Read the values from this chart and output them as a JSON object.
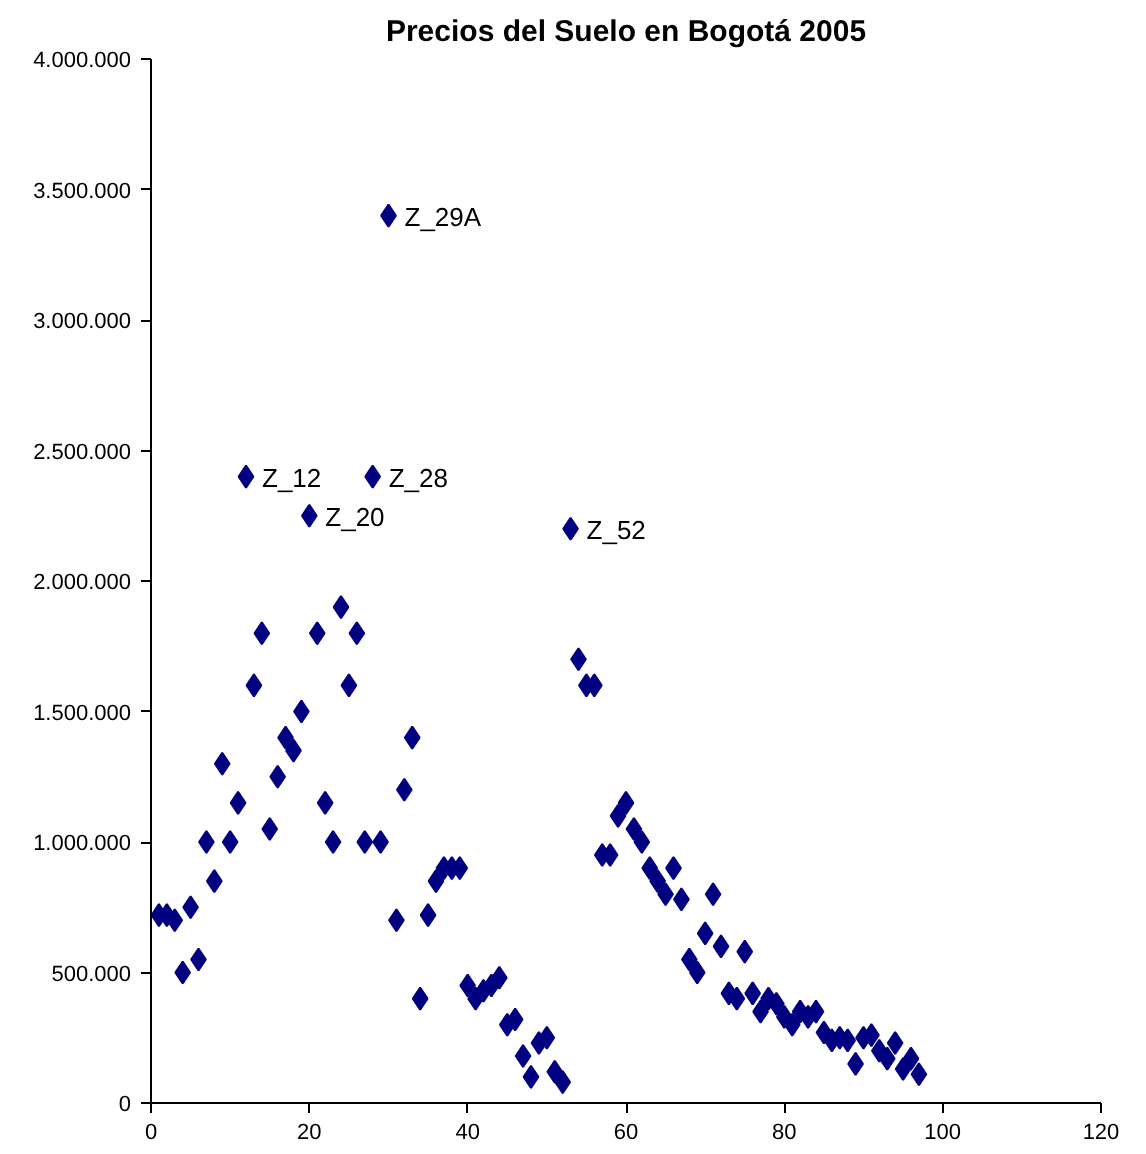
{
  "chart_data": {
    "type": "scatter",
    "title": "Precios del Suelo en Bogotá 2005",
    "marker": "diamond",
    "grid": false,
    "xlim": [
      0,
      120
    ],
    "xticks": [
      0,
      20,
      40,
      60,
      80,
      100,
      120
    ],
    "ylim": [
      0,
      4000000
    ],
    "yticks": [
      {
        "value": 0,
        "label": "0"
      },
      {
        "value": 500000,
        "label": "500.000"
      },
      {
        "value": 1000000,
        "label": "1.000.000"
      },
      {
        "value": 1500000,
        "label": "1.500.000"
      },
      {
        "value": 2000000,
        "label": "2.000.000"
      },
      {
        "value": 2500000,
        "label": "2.500.000"
      },
      {
        "value": 3000000,
        "label": "3.000.000"
      },
      {
        "value": 3500000,
        "label": "3.500.000"
      },
      {
        "value": 4000000,
        "label": "4.000.000"
      }
    ],
    "x": [
      1,
      2,
      3,
      4,
      5,
      6,
      7,
      8,
      9,
      10,
      11,
      12,
      13,
      14,
      15,
      16,
      17,
      18,
      19,
      20,
      21,
      22,
      23,
      24,
      25,
      26,
      27,
      28,
      29,
      30,
      31,
      32,
      33,
      34,
      35,
      36,
      37,
      38,
      39,
      40,
      41,
      42,
      43,
      44,
      45,
      46,
      47,
      48,
      49,
      50,
      51,
      52,
      53,
      54,
      55,
      56,
      57,
      58,
      59,
      60,
      61,
      62,
      63,
      64,
      65,
      66,
      67,
      68,
      69,
      70,
      71,
      72,
      73,
      74,
      75,
      76,
      77,
      78,
      79,
      80,
      81,
      82,
      83,
      84,
      85,
      86,
      87,
      88,
      89,
      90,
      91,
      92,
      93,
      94,
      95,
      96,
      97
    ],
    "series": [
      {
        "color": "#000080",
        "values": [
          720000,
          720000,
          700000,
          500000,
          750000,
          550000,
          1000000,
          850000,
          1300000,
          1000000,
          1150000,
          2400000,
          1600000,
          1800000,
          1050000,
          1250000,
          1400000,
          1350000,
          1500000,
          2250000,
          1800000,
          1150000,
          1000000,
          1900000,
          1600000,
          1800000,
          1000000,
          2400000,
          1000000,
          3400000,
          700000,
          1200000,
          1400000,
          400000,
          720000,
          850000,
          900000,
          900000,
          900000,
          450000,
          400000,
          430000,
          450000,
          480000,
          300000,
          320000,
          180000,
          100000,
          230000,
          250000,
          120000,
          80000,
          2200000,
          1700000,
          1600000,
          1600000,
          950000,
          950000,
          1100000,
          1150000,
          1050000,
          1000000,
          900000,
          850000,
          800000,
          900000,
          780000,
          550000,
          500000,
          650000,
          800000,
          600000,
          420000,
          400000,
          580000,
          420000,
          350000,
          400000,
          380000,
          330000,
          300000,
          350000,
          330000,
          350000,
          270000,
          240000,
          250000,
          240000,
          150000,
          250000,
          260000,
          200000,
          170000,
          230000,
          130000,
          170000,
          110000
        ]
      }
    ],
    "annotations": [
      {
        "text": "Z_12",
        "x": 12,
        "y": 2400000
      },
      {
        "text": "Z_20",
        "x": 20,
        "y": 2250000
      },
      {
        "text": "Z_28",
        "x": 28,
        "y": 2400000
      },
      {
        "text": "Z_29A",
        "x": 30,
        "y": 3400000
      },
      {
        "text": "Z_52",
        "x": 53,
        "y": 2200000
      }
    ]
  }
}
